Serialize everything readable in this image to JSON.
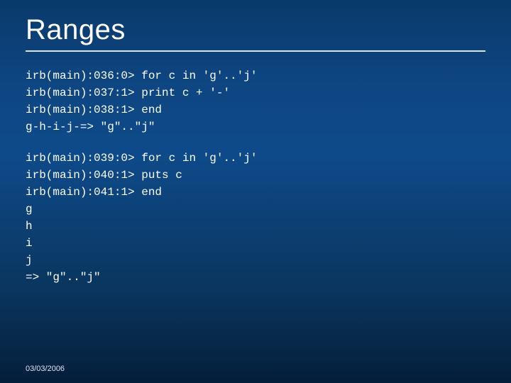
{
  "colors": {
    "bg_top": "#0a3a6b",
    "bg_mid1": "#0d4580",
    "bg_mid2": "#0e4a8a",
    "bg_low": "#0a365f",
    "bg_bottom": "#041e3a",
    "text": "#ffffff",
    "rule": "#ffffff",
    "footer_text": "#d9e6f5"
  },
  "typography": {
    "title_fontsize": 40,
    "title_weight": 400,
    "code_fontsize": 16,
    "code_family": "Courier New",
    "footer_fontsize": 11
  },
  "title": "Ranges",
  "code1": "irb(main):036:0> for c in 'g'..'j'\nirb(main):037:1> print c + '-'\nirb(main):038:1> end\ng-h-i-j-=> \"g\"..\"j\"",
  "code2": "irb(main):039:0> for c in 'g'..'j'\nirb(main):040:1> puts c\nirb(main):041:1> end\ng\nh\ni\nj\n=> \"g\"..\"j\"",
  "footer": "03/03/2006"
}
